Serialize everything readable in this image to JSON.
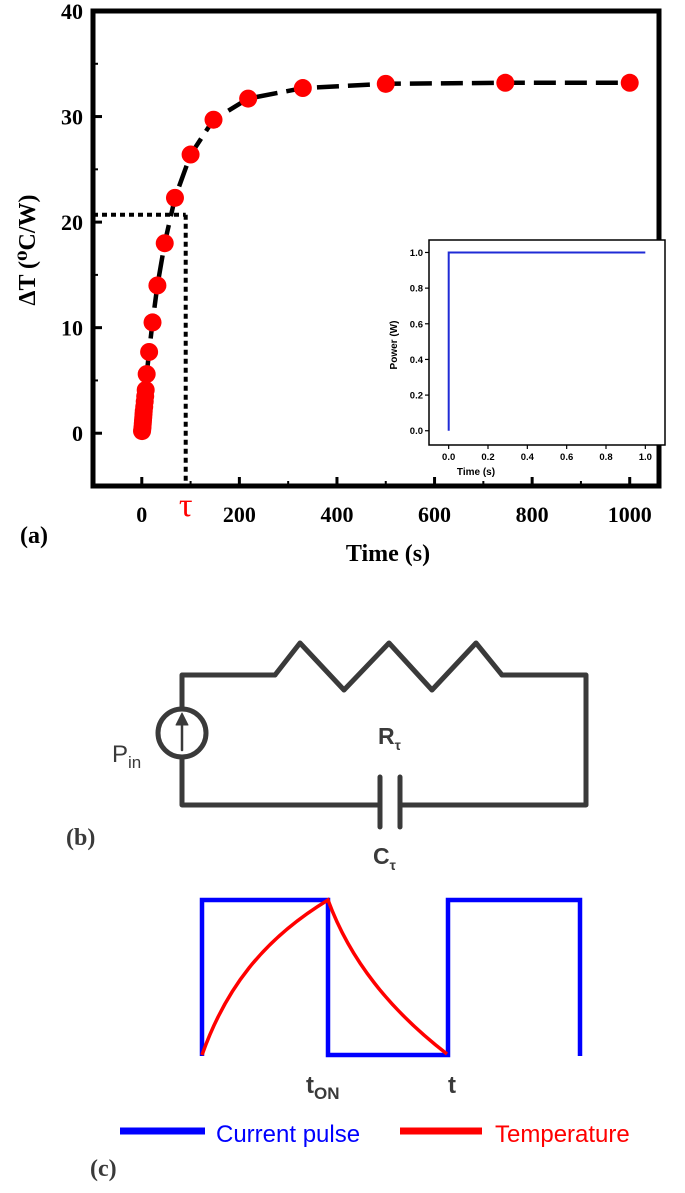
{
  "chart_data": [
    {
      "type": "line",
      "panel_label": "(a)",
      "xlabel": "Time (s)",
      "ylabel": "ΔT (⁰C/W)",
      "xlim": [
        -100,
        1060
      ],
      "ylim": [
        -5,
        40
      ],
      "xticks": [
        "0",
        "200",
        "400",
        "600",
        "800",
        "1000"
      ],
      "xtick_values": [
        0,
        200,
        400,
        600,
        800,
        1000
      ],
      "yticks": [
        "0",
        "10",
        "20",
        "30",
        "40"
      ],
      "ytick_values": [
        0,
        10,
        20,
        30,
        40
      ],
      "tau_label": "τ",
      "tau_x": 90,
      "tau_y": 20.7,
      "marker_color": "#ff0000",
      "line_color": "#000000",
      "x": [
        0.5,
        1,
        1.5,
        2,
        2.5,
        3,
        3.5,
        4,
        5,
        6,
        7,
        8,
        10,
        15,
        22,
        32,
        47,
        68,
        100,
        147,
        218,
        330,
        500,
        745,
        1000
      ],
      "values": [
        0.2,
        0.4,
        0.6,
        0.9,
        1.2,
        1.5,
        1.8,
        2.1,
        2.5,
        3.0,
        3.5,
        4.1,
        5.6,
        7.7,
        10.5,
        14.0,
        18.0,
        22.3,
        26.4,
        29.7,
        31.7,
        32.7,
        33.1,
        33.2,
        33.2
      ],
      "inset": {
        "type": "line",
        "xlabel": "Time (s)",
        "ylabel": "Power (W)",
        "xlim": [
          -0.1,
          1.1
        ],
        "ylim": [
          -0.08,
          1.07
        ],
        "xticks": [
          "0.0",
          "0.2",
          "0.4",
          "0.6",
          "0.8",
          "1.0"
        ],
        "xtick_values": [
          0,
          0.2,
          0.4,
          0.6,
          0.8,
          1.0
        ],
        "yticks": [
          "0.0",
          "0.2",
          "0.4",
          "0.6",
          "0.8",
          "1.0"
        ],
        "ytick_values": [
          0,
          0.2,
          0.4,
          0.6,
          0.8,
          1.0
        ],
        "line_color": "#1f2bd6",
        "x": [
          0,
          0,
          1.0
        ],
        "values": [
          0,
          1.0,
          1.0
        ]
      }
    }
  ],
  "circuit": {
    "panel_label": "(b)",
    "source_label_main": "P",
    "source_label_sub": "in",
    "resistor_label_main": "R",
    "resistor_label_sub": "τ",
    "capacitor_label_main": "C",
    "capacitor_label_sub": "τ"
  },
  "waveform": {
    "panel_label": "(c)",
    "ton_label_main": "t",
    "ton_label_sub": "ON",
    "t_label": "t",
    "legend": [
      {
        "label": "Current pulse",
        "color": "#0000ff"
      },
      {
        "label": "Temperature",
        "color": "#ff0000"
      }
    ]
  }
}
